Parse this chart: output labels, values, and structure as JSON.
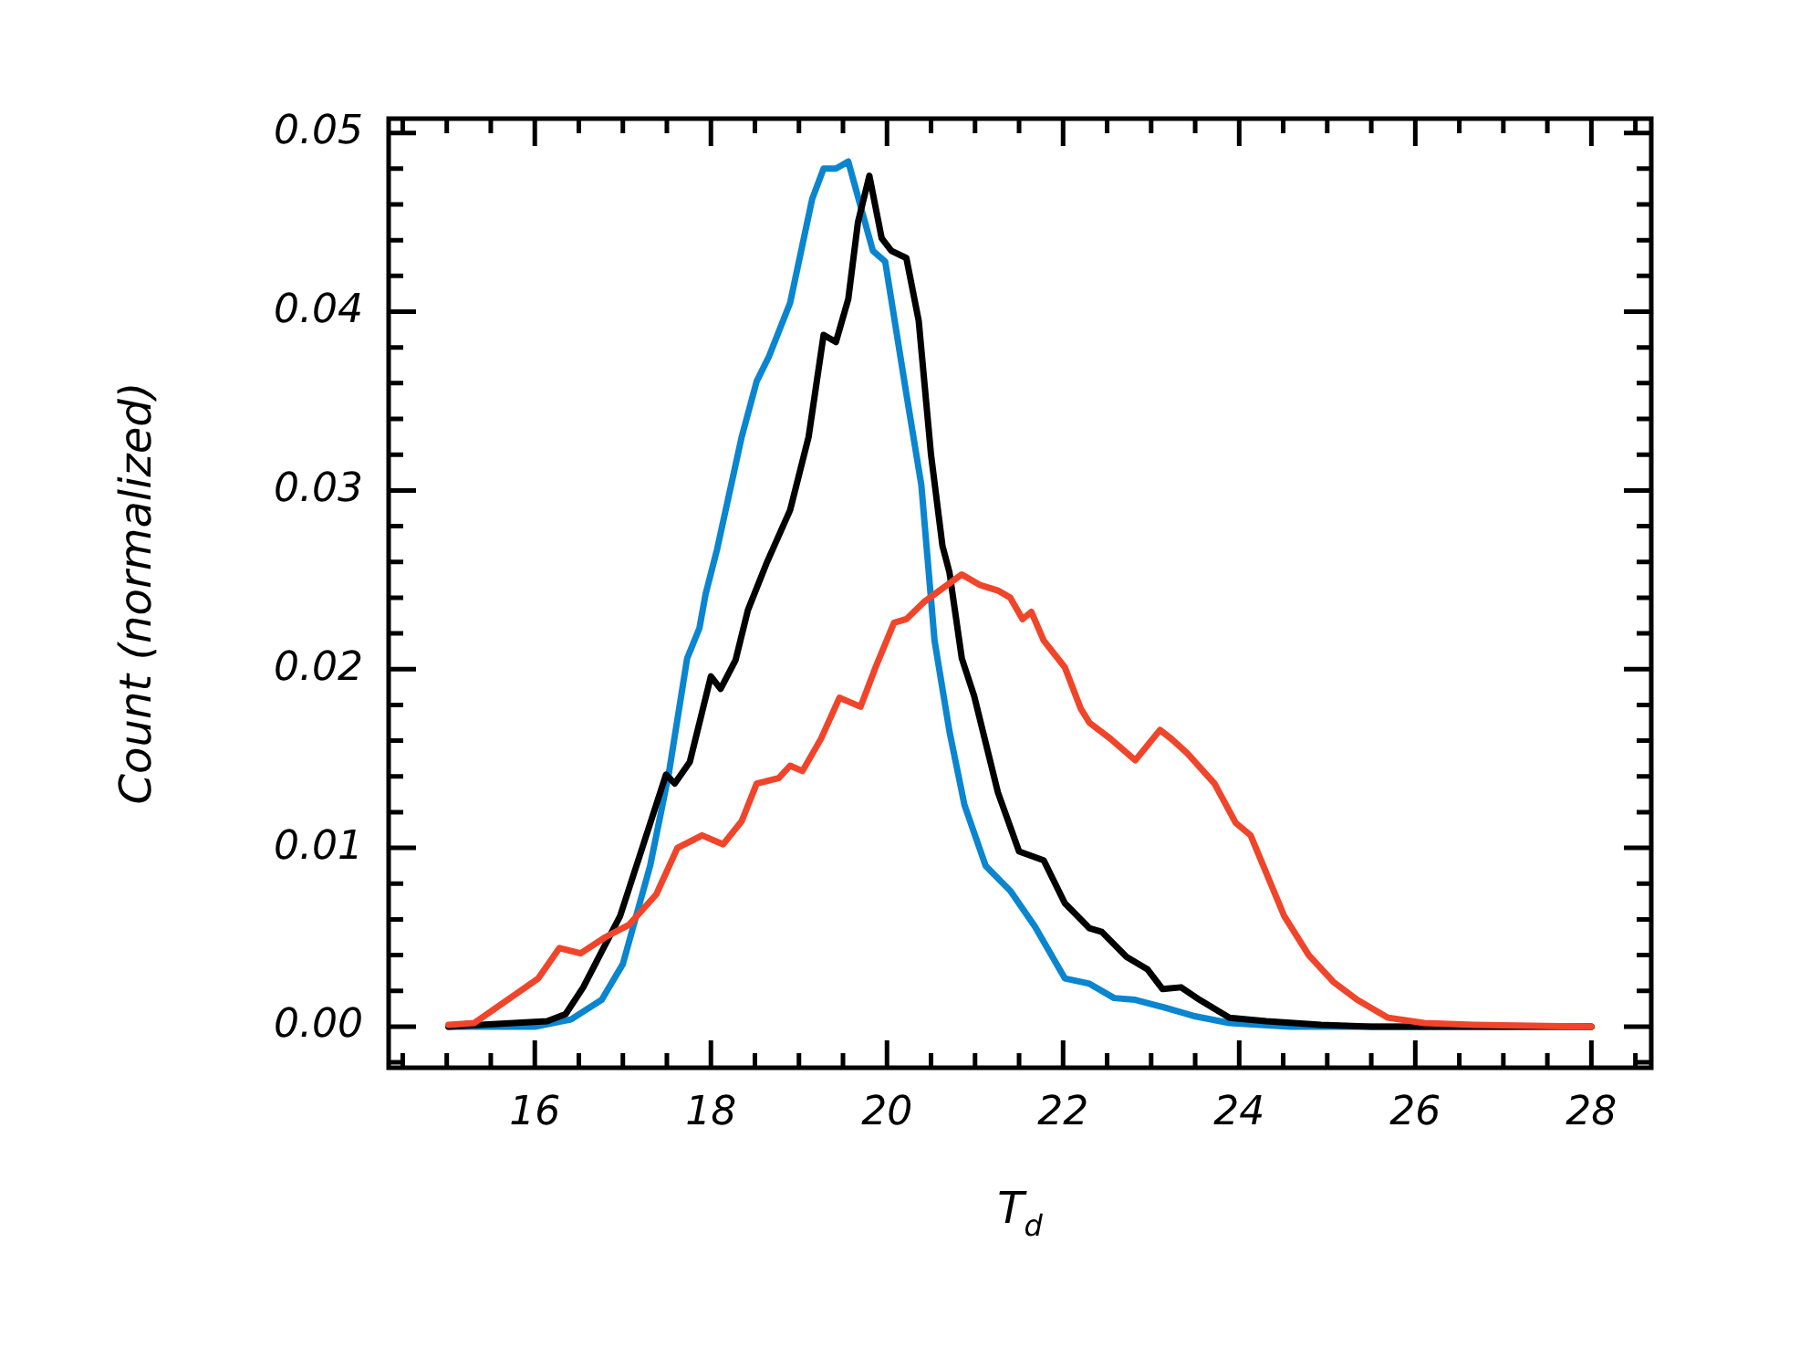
{
  "chart_data": {
    "type": "line",
    "xlabel": "T$_{d}$",
    "ylabel": "Count (normalized)",
    "xlim": [
      14.34,
      28.68
    ],
    "ylim": [
      -0.0023,
      0.0508
    ],
    "xticks": [
      {
        "value": 14.5,
        "label": null
      },
      {
        "value": 15,
        "label": null
      },
      {
        "value": 15.5,
        "label": null
      },
      16,
      {
        "value": 16.5,
        "label": null
      },
      {
        "value": 17,
        "label": null
      },
      {
        "value": 17.5,
        "label": null
      },
      18,
      {
        "value": 18.5,
        "label": null
      },
      {
        "value": 19,
        "label": null
      },
      {
        "value": 19.5,
        "label": null
      },
      20,
      {
        "value": 20.5,
        "label": null
      },
      {
        "value": 21,
        "label": null
      },
      {
        "value": 21.5,
        "label": null
      },
      22,
      {
        "value": 22.5,
        "label": null
      },
      {
        "value": 23,
        "label": null
      },
      {
        "value": 23.5,
        "label": null
      },
      24,
      {
        "value": 24.5,
        "label": null
      },
      {
        "value": 25,
        "label": null
      },
      {
        "value": 25.5,
        "label": null
      },
      26,
      {
        "value": 26.5,
        "label": null
      },
      {
        "value": 27,
        "label": null
      },
      {
        "value": 27.5,
        "label": null
      },
      28,
      {
        "value": 28.5,
        "label": null
      }
    ],
    "yticks": [
      {
        "value": -0.002,
        "label": null
      },
      {
        "value": 0,
        "label": "0.00"
      },
      {
        "value": 0.002,
        "label": null
      },
      {
        "value": 0.004,
        "label": null
      },
      {
        "value": 0.006,
        "label": null
      },
      {
        "value": 0.008,
        "label": null
      },
      {
        "value": 0.01,
        "label": "0.01"
      },
      {
        "value": 0.012,
        "label": null
      },
      {
        "value": 0.014,
        "label": null
      },
      {
        "value": 0.016,
        "label": null
      },
      {
        "value": 0.018,
        "label": null
      },
      {
        "value": 0.02,
        "label": "0.02"
      },
      {
        "value": 0.022,
        "label": null
      },
      {
        "value": 0.024,
        "label": null
      },
      {
        "value": 0.026,
        "label": null
      },
      {
        "value": 0.028,
        "label": null
      },
      {
        "value": 0.03,
        "label": "0.03"
      },
      {
        "value": 0.032,
        "label": null
      },
      {
        "value": 0.034,
        "label": null
      },
      {
        "value": 0.036,
        "label": null
      },
      {
        "value": 0.038,
        "label": null
      },
      {
        "value": 0.04,
        "label": "0.04"
      },
      {
        "value": 0.042,
        "label": null
      },
      {
        "value": 0.044,
        "label": null
      },
      {
        "value": 0.046,
        "label": null
      },
      {
        "value": 0.048,
        "label": null
      },
      {
        "value": 0.05,
        "label": "0.05"
      }
    ],
    "marker": "none",
    "line_style": "solid",
    "legend": false,
    "series": [
      {
        "color": "#f0452a",
        "x": [
          15.02,
          15.31,
          15.72,
          16.04,
          16.28,
          16.52,
          16.8,
          17.07,
          17.38,
          17.62,
          17.9,
          18.14,
          18.35,
          18.52,
          18.77,
          18.9,
          19.04,
          19.25,
          19.46,
          19.7,
          19.87,
          20.08,
          20.22,
          20.43,
          20.85,
          21.06,
          21.26,
          21.4,
          21.54,
          21.64,
          21.78,
          22.02,
          22.2,
          22.3,
          22.54,
          22.82,
          23.1,
          23.23,
          23.41,
          23.72,
          23.96,
          24.13,
          24.51,
          24.79,
          25.07,
          25.34,
          25.69,
          26.1,
          26.66,
          28
        ],
        "values": [
          0.0001,
          0.0002,
          0.0016,
          0.0027,
          0.0044,
          0.0041,
          0.005,
          0.0057,
          0.0074,
          0.01,
          0.0107,
          0.0102,
          0.0115,
          0.0136,
          0.0139,
          0.0146,
          0.0143,
          0.0161,
          0.0184,
          0.0179,
          0.0201,
          0.0226,
          0.0228,
          0.0238,
          0.0253,
          0.0247,
          0.0244,
          0.024,
          0.0228,
          0.0232,
          0.0216,
          0.0201,
          0.0178,
          0.017,
          0.0161,
          0.0149,
          0.0166,
          0.0161,
          0.0153,
          0.0136,
          0.0114,
          0.0107,
          0.0062,
          0.004,
          0.0025,
          0.0015,
          0.0005,
          0.0002,
          0.0001,
          0
        ]
      },
      {
        "color": "#000000",
        "x": [
          15.02,
          16.14,
          16.35,
          16.55,
          16.76,
          16.97,
          17.24,
          17.49,
          17.59,
          17.76,
          18.0,
          18.11,
          18.28,
          18.42,
          18.63,
          18.9,
          19.11,
          19.28,
          19.42,
          19.56,
          19.67,
          19.8,
          19.94,
          20.05,
          20.22,
          20.36,
          20.5,
          20.63,
          20.71,
          20.85,
          20.99,
          21.26,
          21.5,
          21.78,
          22.02,
          22.3,
          22.44,
          22.72,
          22.96,
          23.13,
          23.34,
          23.55,
          23.89,
          24.31,
          24.93,
          25.5,
          28
        ],
        "values": [
          0,
          0.0003,
          0.0007,
          0.0022,
          0.0042,
          0.0062,
          0.0103,
          0.0141,
          0.0136,
          0.0148,
          0.0196,
          0.0189,
          0.0205,
          0.0233,
          0.0259,
          0.0289,
          0.033,
          0.0387,
          0.0383,
          0.0407,
          0.045,
          0.0476,
          0.0441,
          0.0434,
          0.043,
          0.0395,
          0.032,
          0.0269,
          0.0254,
          0.0206,
          0.0185,
          0.0131,
          0.0098,
          0.0093,
          0.0069,
          0.0055,
          0.0053,
          0.0039,
          0.0032,
          0.0021,
          0.0022,
          0.0015,
          0.0005,
          0.0003,
          0.0001,
          0,
          0
        ]
      },
      {
        "color": "#0a85d0",
        "x": [
          15.02,
          16.0,
          16.41,
          16.76,
          17.0,
          17.31,
          17.52,
          17.73,
          17.87,
          17.94,
          18.07,
          18.35,
          18.52,
          18.66,
          18.9,
          19.15,
          19.28,
          19.42,
          19.56,
          19.84,
          19.98,
          20.22,
          20.39,
          20.54,
          20.71,
          20.88,
          21.12,
          21.4,
          21.68,
          22.02,
          22.3,
          22.58,
          22.82,
          23.13,
          23.48,
          23.89,
          24.58,
          28
        ],
        "values": [
          0,
          0,
          0.0004,
          0.0015,
          0.0035,
          0.009,
          0.0141,
          0.0206,
          0.0223,
          0.0242,
          0.0267,
          0.033,
          0.0361,
          0.0375,
          0.0405,
          0.0463,
          0.048,
          0.048,
          0.0484,
          0.0434,
          0.0428,
          0.0354,
          0.0303,
          0.0216,
          0.0165,
          0.0124,
          0.009,
          0.0076,
          0.0056,
          0.0027,
          0.0024,
          0.0016,
          0.0015,
          0.0011,
          0.0006,
          0.0002,
          0,
          0
        ]
      }
    ]
  }
}
